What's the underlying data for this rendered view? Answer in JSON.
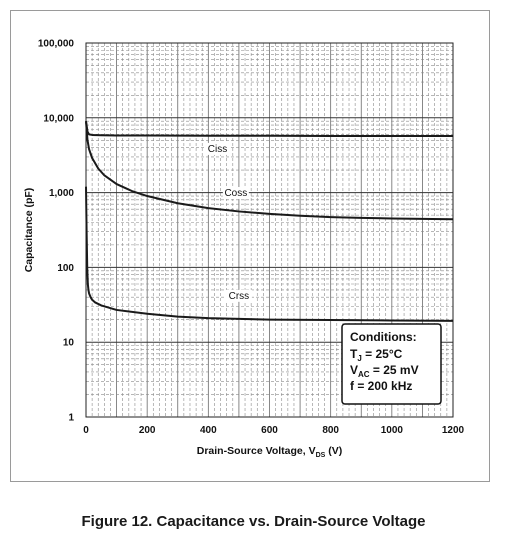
{
  "caption": "Figure 12. Capacitance vs. Drain-Source Voltage",
  "chart_data": {
    "type": "line",
    "title": "",
    "xlabel": {
      "main": "Drain-Source Voltage, V",
      "sub": "DS",
      "unit": "(V)"
    },
    "ylabel": "Capacitance (pF)",
    "x_scale": "linear",
    "y_scale": "log",
    "xlim": [
      0,
      1200
    ],
    "ylim": [
      1,
      100000
    ],
    "x_ticks": [
      0,
      200,
      400,
      600,
      800,
      1000,
      1200
    ],
    "x_tick_labels": [
      "0",
      "200",
      "400",
      "600",
      "800",
      "1000",
      "1200"
    ],
    "y_ticks": [
      1,
      10,
      100,
      1000,
      10000,
      100000
    ],
    "y_tick_labels": [
      "1",
      "10",
      "100",
      "1,000",
      "10,000",
      "100,000"
    ],
    "grid": true,
    "line_color": "#1a1a1a",
    "series": [
      {
        "name": "Ciss",
        "x": [
          0,
          5,
          10,
          20,
          50,
          100,
          200,
          400,
          600,
          800,
          1000,
          1200
        ],
        "y": [
          9000,
          6500,
          6000,
          5900,
          5850,
          5800,
          5800,
          5750,
          5750,
          5700,
          5700,
          5700
        ]
      },
      {
        "name": "Coss",
        "x": [
          0,
          2,
          5,
          10,
          20,
          40,
          60,
          100,
          150,
          200,
          300,
          400,
          500,
          600,
          700,
          800,
          900,
          1000,
          1100,
          1200
        ],
        "y": [
          9000,
          7000,
          5000,
          3800,
          2900,
          2100,
          1700,
          1300,
          1050,
          900,
          720,
          620,
          560,
          520,
          490,
          470,
          460,
          450,
          445,
          440
        ]
      },
      {
        "name": "Crss",
        "x": [
          0,
          2,
          4,
          6,
          8,
          10,
          15,
          20,
          30,
          50,
          100,
          200,
          300,
          400,
          600,
          800,
          1000,
          1200
        ],
        "y": [
          1200,
          300,
          100,
          60,
          50,
          45,
          40,
          37,
          34,
          31,
          27,
          24,
          22,
          21,
          20,
          19.8,
          19.5,
          19.3
        ]
      }
    ],
    "annotation": {
      "title": "Conditions:",
      "lines": [
        {
          "main": "T",
          "sub": "J",
          "rest": " = 25°C"
        },
        {
          "main": "V",
          "sub": "AC",
          "rest": " = 25 mV"
        },
        {
          "main": "",
          "sub": "",
          "rest": "f = 200 kHz"
        }
      ],
      "placement": "bottom-right"
    }
  }
}
